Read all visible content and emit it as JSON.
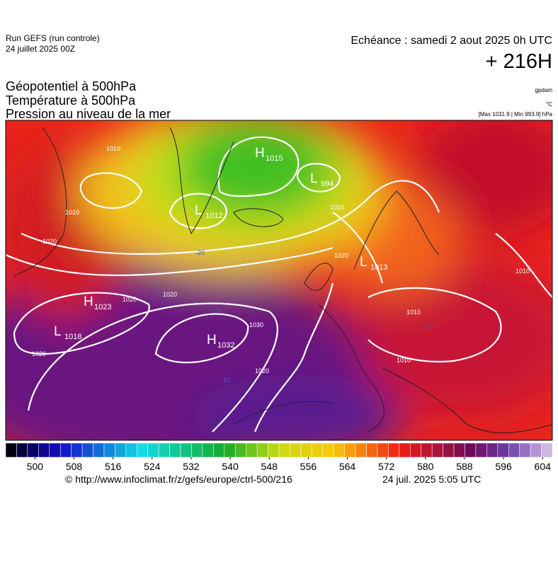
{
  "header": {
    "run": "Run GEFS (run controle)",
    "run_date": "24 juillet 2025 00Z",
    "valid": "Echéance : samedi 2 aout 2025 0h UTC",
    "lead": "+ 216H",
    "fields": [
      "Géopotentiel à 500hPa",
      "Température à 500hPa",
      "Pression au niveau de la mer"
    ],
    "units": [
      "gpdam",
      "°C"
    ],
    "extremes": "[Max 1031.9 | Min 993.9] hPa"
  },
  "centers": [
    {
      "type": "H",
      "value": 1015
    },
    {
      "type": "L",
      "value": 994
    },
    {
      "type": "L",
      "value": 1012
    },
    {
      "type": "H",
      "value": 1023
    },
    {
      "type": "L",
      "value": 1018
    },
    {
      "type": "H",
      "value": 1032
    },
    {
      "type": "L",
      "value": 1013
    }
  ],
  "isobar_labels": [
    1010,
    1010,
    1020,
    1020,
    1020,
    1020,
    1030,
    1020,
    1010,
    1020,
    1010,
    1010,
    1010
  ],
  "temperature_labels": [
    -20,
    -10,
    -10,
    -10
  ],
  "colorbar": {
    "range": [
      494,
      606
    ],
    "ticks": [
      500,
      508,
      516,
      524,
      532,
      540,
      548,
      556,
      564,
      572,
      580,
      588,
      596,
      604
    ]
  },
  "footer": {
    "source": "© http://www.infoclimat.fr/z/gefs/europe/ctrl-500/216",
    "issued": "24 juil. 2025  5:05 UTC"
  }
}
